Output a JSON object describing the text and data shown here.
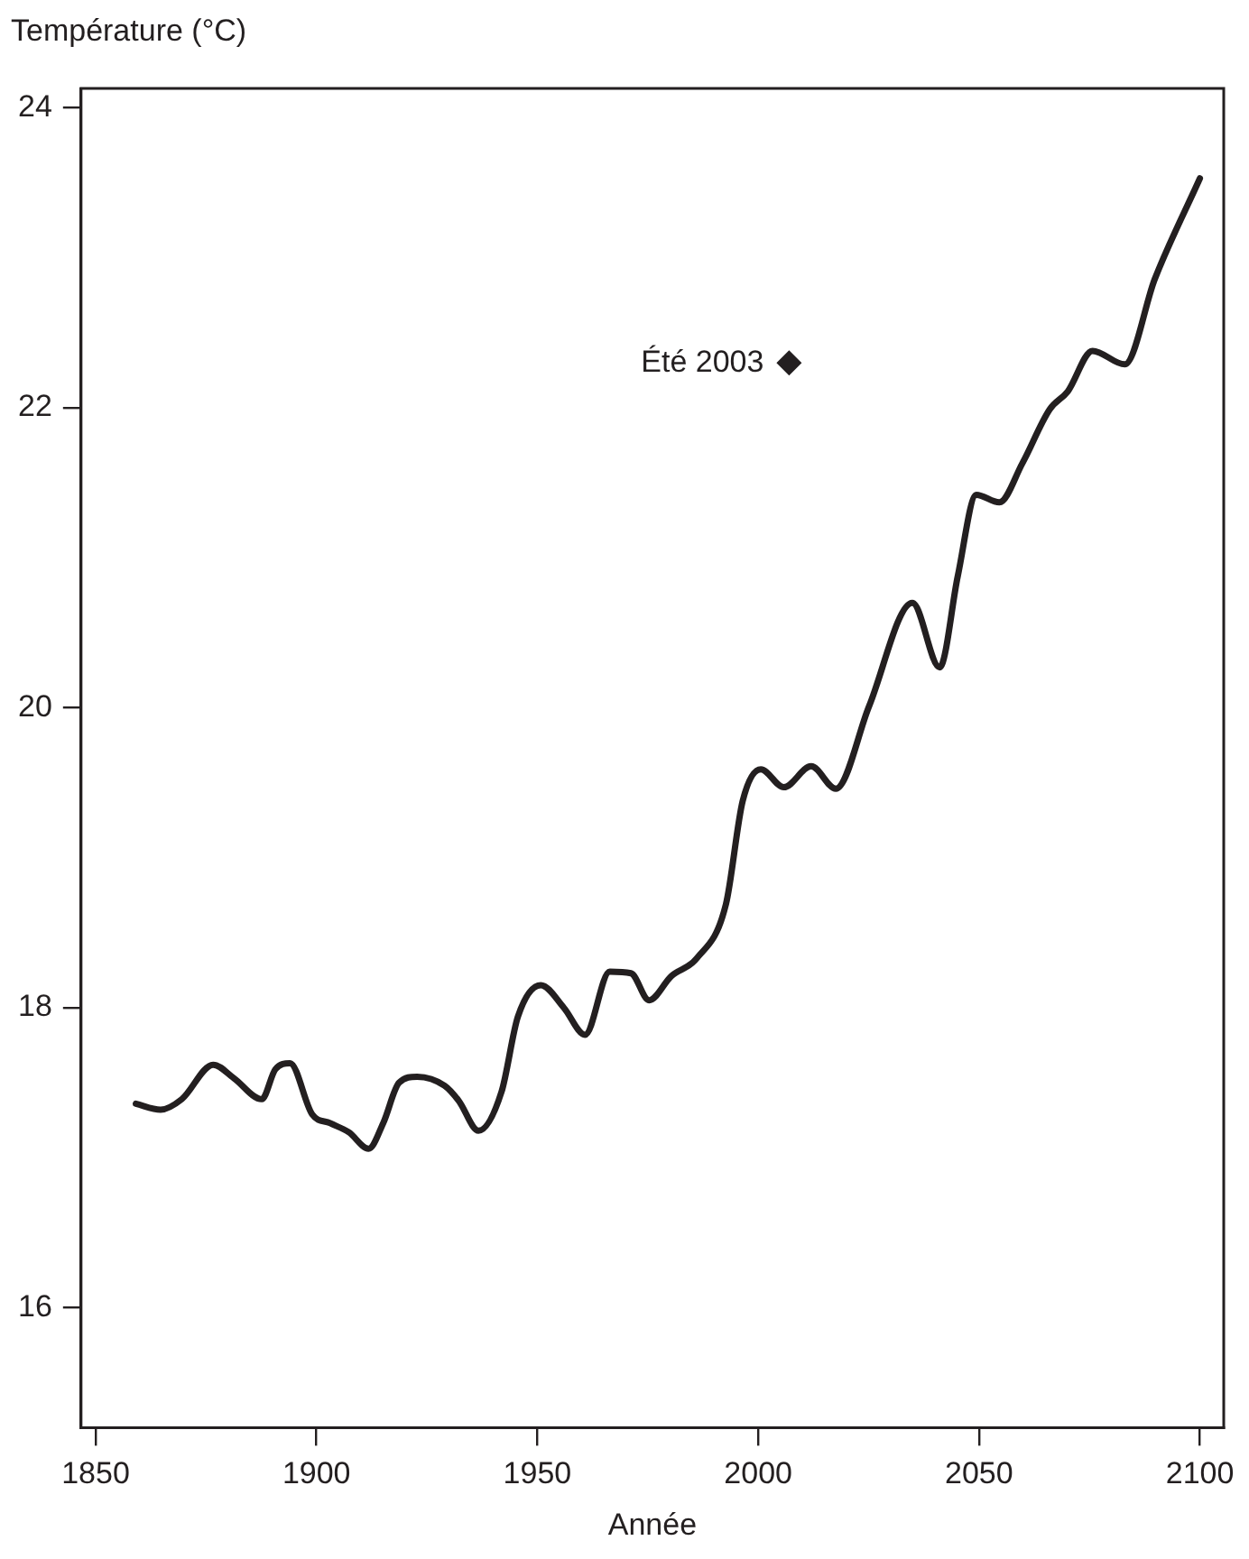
{
  "chart_data": {
    "type": "line",
    "ylabel": "Température (°C)",
    "xlabel": "Année",
    "xlim": [
      1846.7,
      2105.4
    ],
    "xticks": [
      1850,
      1900,
      1950,
      2000,
      2050,
      2100
    ],
    "ylim": [
      15.2,
      24.13
    ],
    "yticks": [
      16,
      18,
      20,
      22,
      24
    ],
    "grid": false,
    "legend": false,
    "line_style": "solid",
    "series": [
      {
        "color": "#231f20",
        "marker": "none",
        "x": [
          1859.1,
          1864.7,
          1869.5,
          1876.6,
          1881.3,
          1887.6,
          1890.7,
          1894.0,
          1899.0,
          1903.1,
          1907.3,
          1911.8,
          1915.1,
          1918.7,
          1922.8,
          1929.0,
          1932.2,
          1936.7,
          1941.9,
          1945.6,
          1950.8,
          1956.0,
          1960.8,
          1966.4,
          1971.2,
          1975.3,
          1980.3,
          1986.1,
          1992.7,
          1996.5,
          2000.6,
          2005.8,
          2012.0,
          2017.6,
          2025.1,
          2034.9,
          2041.1,
          2045.2,
          2049.4,
          2054.6,
          2059.8,
          2066.0,
          2070.1,
          2075.7,
          2083.0,
          2089.8,
          2100
        ],
        "values": [
          17.36,
          17.32,
          17.39,
          17.62,
          17.53,
          17.39,
          17.59,
          17.63,
          17.29,
          17.23,
          17.17,
          17.06,
          17.23,
          17.5,
          17.54,
          17.48,
          17.38,
          17.18,
          17.44,
          17.94,
          18.15,
          18.0,
          17.82,
          18.24,
          18.23,
          18.05,
          18.21,
          18.33,
          18.69,
          19.38,
          19.59,
          19.47,
          19.61,
          19.46,
          20.01,
          20.7,
          20.27,
          20.88,
          21.42,
          21.37,
          21.63,
          21.99,
          22.11,
          22.38,
          22.29,
          22.86,
          23.53
        ]
      },
      {
        "type": "scatter",
        "color": "#231f20",
        "marker": "diamond",
        "x": [
          2007
        ],
        "values": [
          22.3
        ]
      }
    ],
    "annotations": [
      {
        "text": "Été 2003",
        "x": 2007,
        "y": 22.3
      }
    ]
  }
}
